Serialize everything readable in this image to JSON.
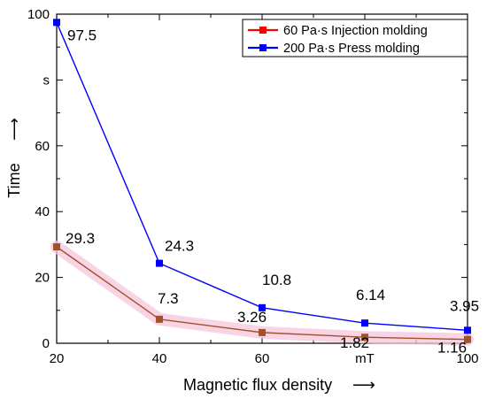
{
  "chart_data": {
    "type": "line",
    "x": [
      20,
      40,
      60,
      80,
      100
    ],
    "xlim": [
      20,
      100
    ],
    "ylim": [
      0,
      100
    ],
    "x_ticks": [
      {
        "value": 20,
        "label": "20"
      },
      {
        "value": 40,
        "label": "40"
      },
      {
        "value": 60,
        "label": "60"
      },
      {
        "value": 80,
        "label": "mT"
      },
      {
        "value": 100,
        "label": "100"
      }
    ],
    "y_ticks": [
      {
        "value": 0,
        "label": "0"
      },
      {
        "value": 20,
        "label": "20"
      },
      {
        "value": 40,
        "label": "40"
      },
      {
        "value": 60,
        "label": "60"
      },
      {
        "value": 80,
        "label": "s"
      },
      {
        "value": 100,
        "label": "100"
      }
    ],
    "xlabel": "Magnetic flux density",
    "xlabel_arrow": "⟶",
    "ylabel": "Time",
    "ylabel_arrow": "⟶",
    "grid": false,
    "legend_position": "top-right",
    "series": [
      {
        "name": "60 Pa·s   Injection molding",
        "color": "#a0522d",
        "legend_color": "#ff0000",
        "values": [
          29.3,
          7.3,
          3.26,
          1.82,
          1.16
        ],
        "labels": [
          "29.3",
          "7.3",
          "3.26",
          "1.82",
          "1.16"
        ]
      },
      {
        "name": "200 Pa·s Press molding",
        "color": "#0000ff",
        "legend_color": "#0000ff",
        "values": [
          97.5,
          24.3,
          10.8,
          6.14,
          3.95
        ],
        "labels": [
          "97.5",
          "24.3",
          "10.8",
          "6.14",
          "3.95"
        ]
      }
    ]
  }
}
